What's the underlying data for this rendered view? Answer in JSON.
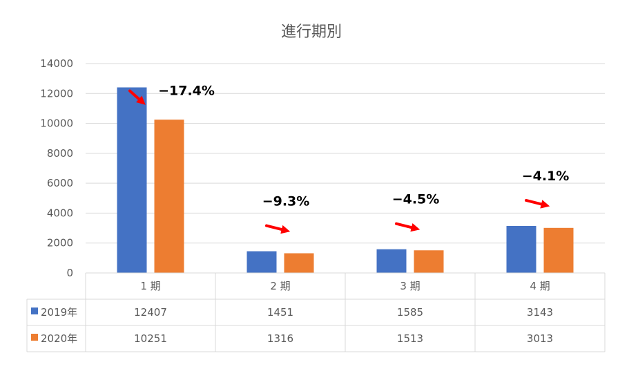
{
  "chart_data": {
    "type": "bar",
    "title": "進行期別",
    "categories": [
      "1 期",
      "2 期",
      "3 期",
      "4 期"
    ],
    "series": [
      {
        "name": "2019年",
        "color": "#4472C4",
        "values": [
          12407,
          1451,
          1585,
          3143
        ]
      },
      {
        "name": "2020年",
        "color": "#ED7D31",
        "values": [
          10251,
          1316,
          1513,
          3013
        ]
      }
    ],
    "ylim": [
      0,
      14000
    ],
    "yticks": [
      0,
      2000,
      4000,
      6000,
      8000,
      10000,
      12000,
      14000
    ],
    "grid": true,
    "legend": "data-table",
    "annotations": [
      "−17.4%",
      "−9.3%",
      "−4.5%",
      "−4.1%"
    ],
    "annotation_color": "#FF0000"
  }
}
